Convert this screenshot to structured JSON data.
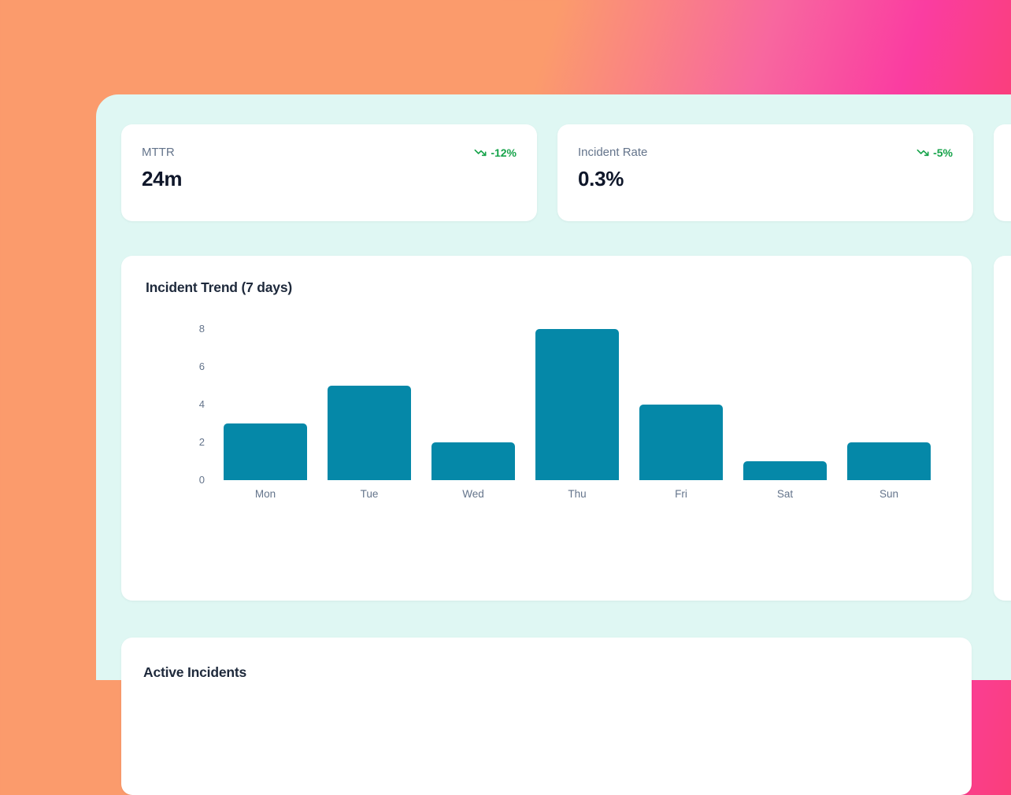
{
  "theme": {
    "bg_gradient": [
      "#fb9b6c",
      "#fa3da1",
      "#fb4053"
    ],
    "panel_bg": "#dff7f3",
    "card_bg": "#ffffff",
    "label_color": "#64748b",
    "value_color": "#0f172a",
    "trend_color": "#16a34a",
    "bar_color": "#0588a8"
  },
  "stats": [
    {
      "label": "MTTR",
      "value": "24m",
      "trend": "-12%"
    },
    {
      "label": "Incident Rate",
      "value": "0.3%",
      "trend": "-5%"
    }
  ],
  "chart": {
    "title": "Incident Trend (7 days)"
  },
  "chart_data": {
    "type": "bar",
    "title": "Incident Trend (7 days)",
    "categories": [
      "Mon",
      "Tue",
      "Wed",
      "Thu",
      "Fri",
      "Sat",
      "Sun"
    ],
    "values": [
      3,
      5,
      2,
      8,
      4,
      1,
      2
    ],
    "xlabel": "",
    "ylabel": "",
    "ylim": [
      0,
      8
    ],
    "yticks": [
      0,
      2,
      4,
      6,
      8
    ],
    "bar_color": "#0588a8",
    "grid": false,
    "legend": false
  },
  "incidents": {
    "title": "Active Incidents"
  }
}
